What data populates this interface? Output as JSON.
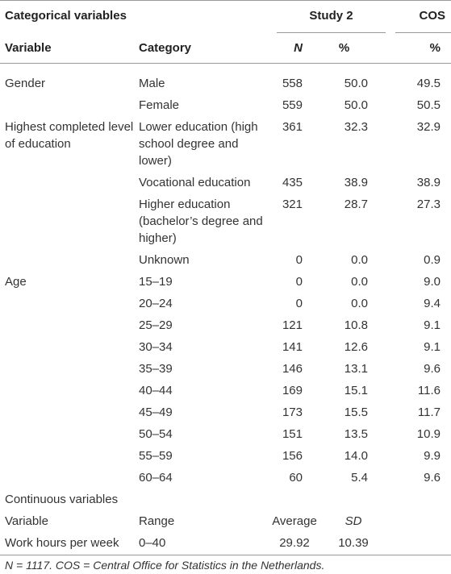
{
  "table": {
    "header": {
      "title": "Categorical variables",
      "study": "Study 2",
      "cos": "COS"
    },
    "columns": [
      "Variable",
      "Category",
      "N",
      "%",
      "%"
    ],
    "rows": [
      [
        "Gender",
        "Male",
        "558",
        "50.0",
        "49.5"
      ],
      [
        null,
        "Female",
        "559",
        "50.0",
        "50.5"
      ],
      [
        "Highest completed level of education",
        "Lower education (high school degree and lower)",
        "361",
        "32.3",
        "32.9"
      ],
      [
        null,
        "Vocational education",
        "435",
        "38.9",
        "38.9"
      ],
      [
        null,
        "Higher education (bachelor’s degree and higher)",
        "321",
        "28.7",
        "27.3"
      ],
      [
        null,
        "Unknown",
        "0",
        "0.0",
        "0.9"
      ],
      [
        "Age",
        "15–19",
        "0",
        "0.0",
        "9.0"
      ],
      [
        null,
        "20–24",
        "0",
        "0.0",
        "9.4"
      ],
      [
        null,
        "25–29",
        "121",
        "10.8",
        "9.1"
      ],
      [
        null,
        "30–34",
        "141",
        "12.6",
        "9.1"
      ],
      [
        null,
        "35–39",
        "146",
        "13.1",
        "9.6"
      ],
      [
        null,
        "40–44",
        "169",
        "15.1",
        "11.6"
      ],
      [
        null,
        "45–49",
        "173",
        "15.5",
        "11.7"
      ],
      [
        null,
        "50–54",
        "151",
        "13.5",
        "10.9"
      ],
      [
        null,
        "55–59",
        "156",
        "14.0",
        "9.9"
      ],
      [
        null,
        "60–64",
        "60",
        "5.4",
        "9.6"
      ]
    ],
    "continuous": {
      "title": "Continuous variables",
      "columns": [
        "Variable",
        "Range",
        "Average",
        "SD"
      ],
      "rows": [
        [
          "Work hours per week",
          "0–40",
          "29.92",
          "10.39"
        ]
      ]
    },
    "footnote": "N = 1117. COS = Central Office for Statistics in the Netherlands."
  }
}
